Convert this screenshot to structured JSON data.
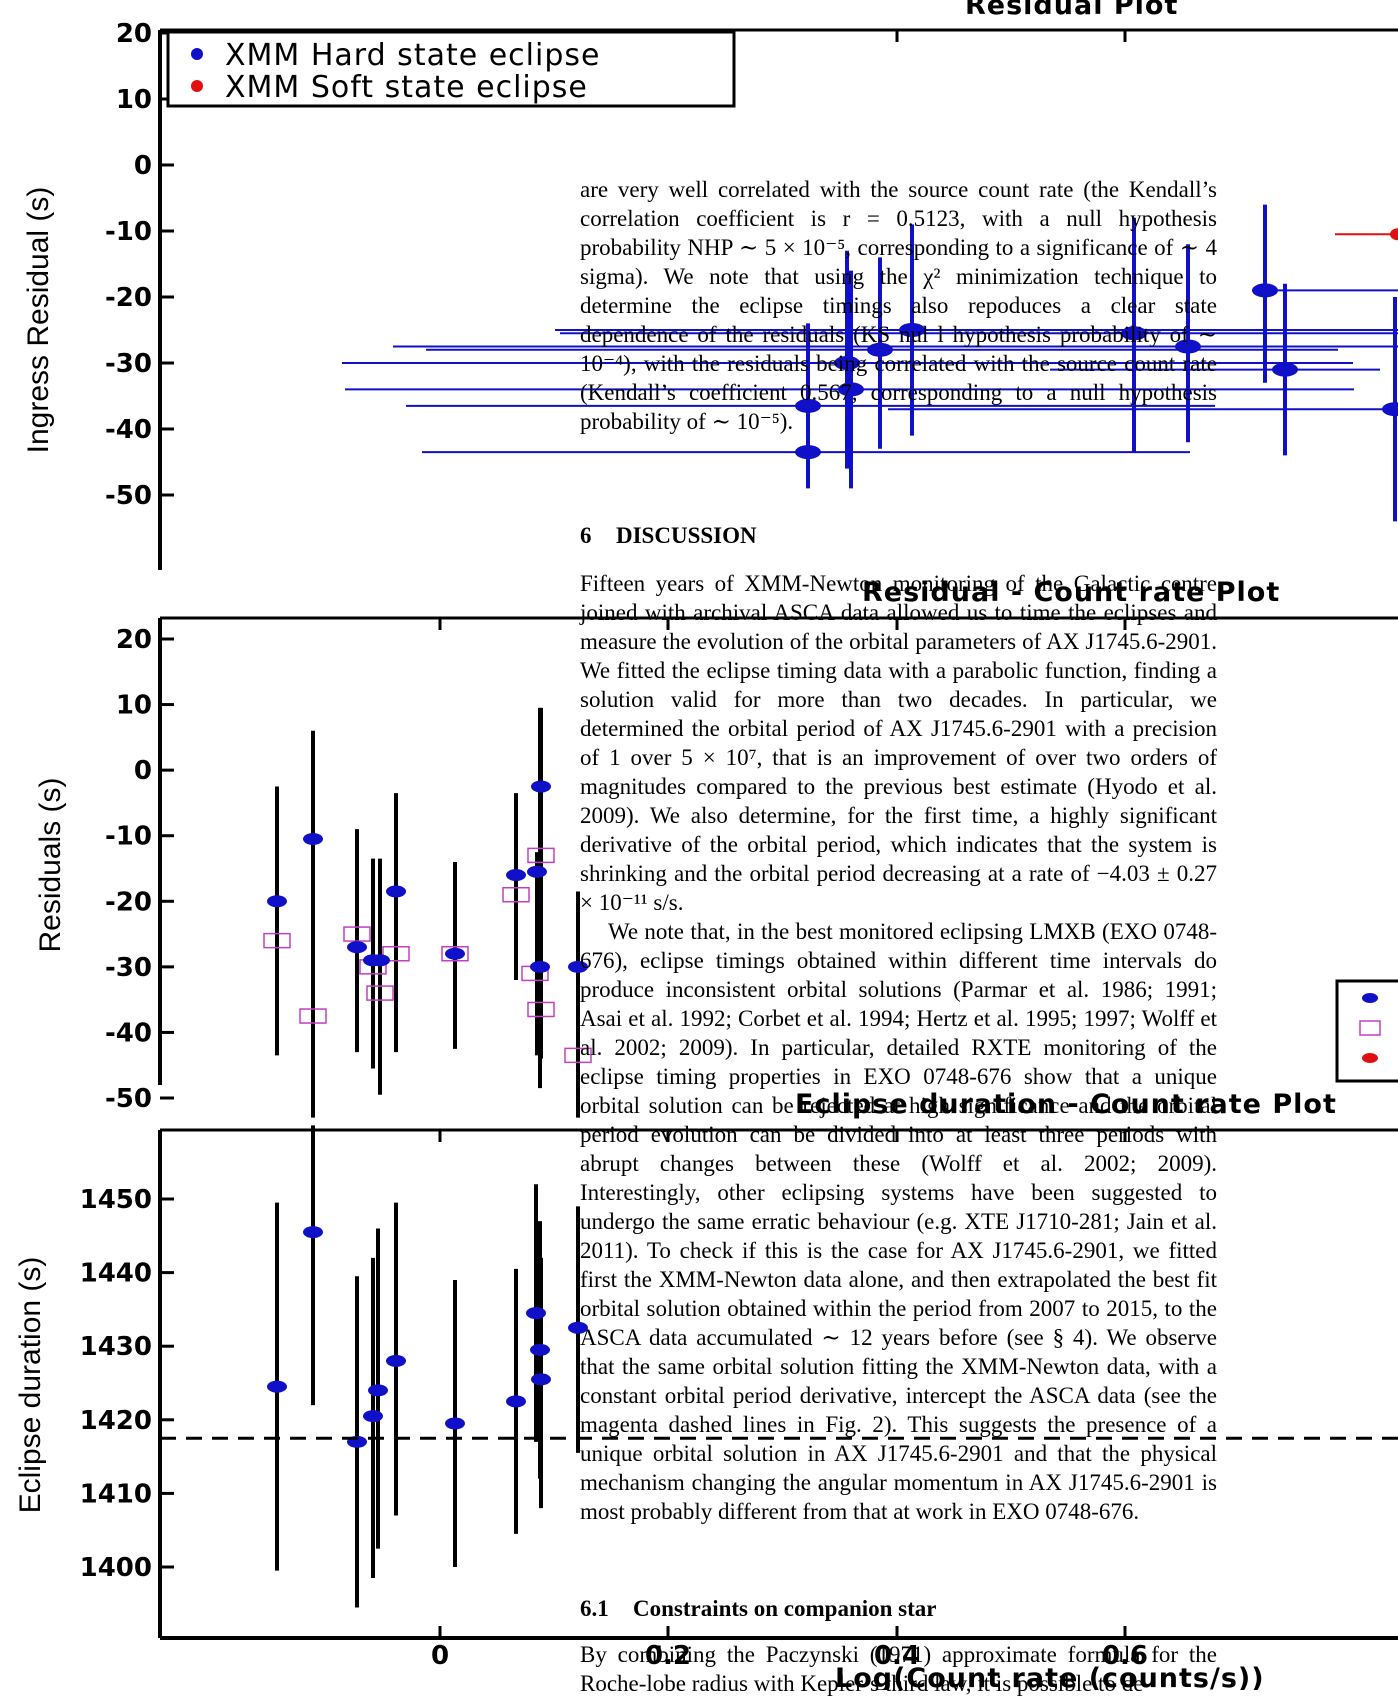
{
  "chart_data": [
    {
      "type": "scatter",
      "title": "Residual Plot",
      "ylabel": "Ingress Residual (s)",
      "ylim": [
        -53,
        20
      ],
      "yticks": [
        20,
        10,
        0,
        -10,
        -20,
        -30,
        -40,
        -50
      ],
      "legend": {
        "placement": "top-left",
        "entries": [
          "XMM Hard state eclipse",
          "XMM Soft state eclipse"
        ],
        "colors": [
          "#1010c8",
          "#e01010"
        ]
      },
      "series": [
        {
          "name": "XMM Hard state eclipse",
          "color": "#1010c8",
          "points": [
            {
              "y": -43.5,
              "ylo": -49,
              "yhi": -31
            },
            {
              "y": -36.5,
              "ylo": -43,
              "yhi": -24
            },
            {
              "y": -30,
              "ylo": -46,
              "yhi": -13
            },
            {
              "y": -34,
              "ylo": -49,
              "yhi": -16
            },
            {
              "y": -28,
              "ylo": -43,
              "yhi": -14
            },
            {
              "y": -25,
              "ylo": -41,
              "yhi": -9
            },
            {
              "y": -25.5,
              "ylo": -43.5,
              "yhi": -8
            },
            {
              "y": -27.5,
              "ylo": -42,
              "yhi": -12
            },
            {
              "y": -19,
              "ylo": -33,
              "yhi": -6
            },
            {
              "y": -31,
              "ylo": -44,
              "yhi": -18
            },
            {
              "y": -37,
              "ylo": -54,
              "yhi": -20
            }
          ]
        },
        {
          "name": "XMM Soft state eclipse",
          "color": "#e01010",
          "points": [
            {
              "y": -10.5
            }
          ]
        }
      ]
    },
    {
      "type": "scatter",
      "title": "Residual - Count rate Plot",
      "ylabel": "Residuals (s)",
      "ylim": [
        -54,
        20
      ],
      "yticks": [
        20,
        10,
        0,
        -10,
        -20,
        -30,
        -40,
        -50
      ],
      "series": [
        {
          "color": "#1010c8",
          "marker": "circle",
          "points": [
            {
              "y": -20,
              "ylo": -43.5,
              "yhi": -2.5
            },
            {
              "y": -10.5,
              "ylo": -53,
              "yhi": 6
            },
            {
              "y": -27,
              "ylo": -43,
              "yhi": -9
            },
            {
              "y": -29,
              "ylo": -45.5,
              "yhi": -13.5
            },
            {
              "y": -29,
              "ylo": -49.5,
              "yhi": -13.5
            },
            {
              "y": -18.5,
              "ylo": -43,
              "yhi": -3.5
            },
            {
              "y": -28,
              "ylo": -42.5,
              "yhi": -14
            },
            {
              "y": -16,
              "ylo": -32,
              "yhi": -3.5
            },
            {
              "y": -15.5,
              "ylo": -43.5,
              "yhi": -12.5
            },
            {
              "y": -30,
              "ylo": -48.5,
              "yhi": 9.5
            },
            {
              "y": -2.5,
              "ylo": -44,
              "yhi": 9.5
            },
            {
              "y": -30,
              "ylo": -53,
              "yhi": -18.5
            }
          ]
        },
        {
          "color": "#c040c0",
          "marker": "open-square",
          "points": [
            {
              "y": -26
            },
            {
              "y": -37.5
            },
            {
              "y": -25
            },
            {
              "y": -30
            },
            {
              "y": -34
            },
            {
              "y": -28
            },
            {
              "y": -28
            },
            {
              "y": -19
            },
            {
              "y": -13
            },
            {
              "y": -31
            },
            {
              "y": -36.5
            },
            {
              "y": -43.5
            }
          ]
        },
        {
          "color": "#e01010",
          "marker": "circle",
          "points": []
        }
      ]
    },
    {
      "type": "scatter",
      "title": "Eclipse duration - Count rate Plot",
      "xlabel": "Log(Count rate (counts/s))",
      "ylabel": "Eclipse duration (s)",
      "ylim": [
        1391.5,
        1459
      ],
      "yticks": [
        1450,
        1440,
        1430,
        1420,
        1410,
        1400
      ],
      "xticks": [
        "0",
        "0.2",
        "0.4",
        "0.6"
      ],
      "reference_line": 1417.5,
      "series": [
        {
          "color": "#1010c8",
          "marker": "circle",
          "points": [
            {
              "y": 1424.5,
              "ylo": 1399.5,
              "yhi": 1449.5
            },
            {
              "y": 1445.5,
              "ylo": 1422,
              "yhi": 1460
            },
            {
              "y": 1417,
              "ylo": 1394.5,
              "yhi": 1439.5
            },
            {
              "y": 1420.5,
              "ylo": 1398.5,
              "yhi": 1442
            },
            {
              "y": 1424,
              "ylo": 1402.5,
              "yhi": 1446
            },
            {
              "y": 1428,
              "ylo": 1407,
              "yhi": 1449.5
            },
            {
              "y": 1419.5,
              "ylo": 1400,
              "yhi": 1439
            },
            {
              "y": 1422.5,
              "ylo": 1404.5,
              "yhi": 1440.5
            },
            {
              "y": 1434.5,
              "ylo": 1417,
              "yhi": 1452
            },
            {
              "y": 1429.5,
              "ylo": 1412,
              "yhi": 1447
            },
            {
              "y": 1425.5,
              "ylo": 1408,
              "yhi": 1442
            },
            {
              "y": 1432.5,
              "ylo": 1415.5,
              "yhi": 1449
            }
          ]
        }
      ]
    }
  ],
  "paper": {
    "p1": "are very well correlated with the source count rate (the Kendall’s correlation coefficient is r = 0.5123, with a null hypothesis probability NHP ∼ 5 × 10⁻⁵, corresponding to a significance of ∼ 4 sigma). We note that using the χ² minimization technique to determine the eclipse timings also repoduces a clear state dependence of the residuals (KS nul l hypothesis probability of ∼ 10⁻⁴), with the residuals being correlated with the source count rate (Kendall’s coefficient 0.567, corresponding to a null hypothesis probability of ∼ 10⁻⁵).",
    "h6_num": "6",
    "h6": "DISCUSSION",
    "p2": "Fifteen years of XMM-Newton monitoring of the Galactic centre joined with archival ASCA data allowed us to time the eclipses and measure the evolution of the orbital parameters of AX J1745.6-2901. We fitted the eclipse timing data with a parabolic function, finding a solution valid for more than two decades. In particular, we determined the orbital period of AX J1745.6-2901 with a precision of 1 over 5 × 10⁷, that is an improvement of over two orders of magnitudes compared to the previous best estimate (Hyodo et al. 2009). We also determine, for the first time, a highly significant derivative of the orbital period, which indicates that the system is shrinking and the orbital period decreasing at a rate of −4.03 ± 0.27 × 10⁻¹¹ s/s.",
    "p3": "We note that, in the best monitored eclipsing LMXB (EXO 0748-676), eclipse timings obtained within different time intervals do produce inconsistent orbital solutions (Parmar et al. 1986; 1991; Asai et al. 1992; Corbet et al. 1994; Hertz et al. 1995; 1997; Wolff et al. 2002; 2009). In particular, detailed RXTE monitoring of the eclipse timing properties in EXO 0748-676 show that a unique orbital solution can be rejected at high significance and the orbital period evolution can be divided into at least three periods with abrupt changes between these (Wolff et al. 2002; 2009). Interestingly, other eclipsing systems have been suggested to undergo the same erratic behaviour (e.g. XTE J1710-281; Jain et al. 2011). To check if this is the case for AX J1745.6-2901, we fitted first the XMM-Newton data alone, and then extrapolated the best fit orbital solution obtained within the period from 2007 to 2015, to the ASCA data accumulated ∼ 12 years before (see § 4). We observe that the same orbital solution fitting the XMM-Newton data, with a constant orbital period derivative, intercept the ASCA data (see the magenta dashed lines in Fig. 2). This suggests the presence of a unique orbital solution in AX J1745.6-2901 and that the physical mechanism changing the angular momentum in AX J1745.6-2901 is most probably different from that at work in EXO 0748-676.",
    "h61_num": "6.1",
    "h61": "Constraints on companion star",
    "p4": "By combining the Paczynski (1971) approximate formula for the Roche-lobe radius with Kepler’s third law, it is possible to de-"
  }
}
